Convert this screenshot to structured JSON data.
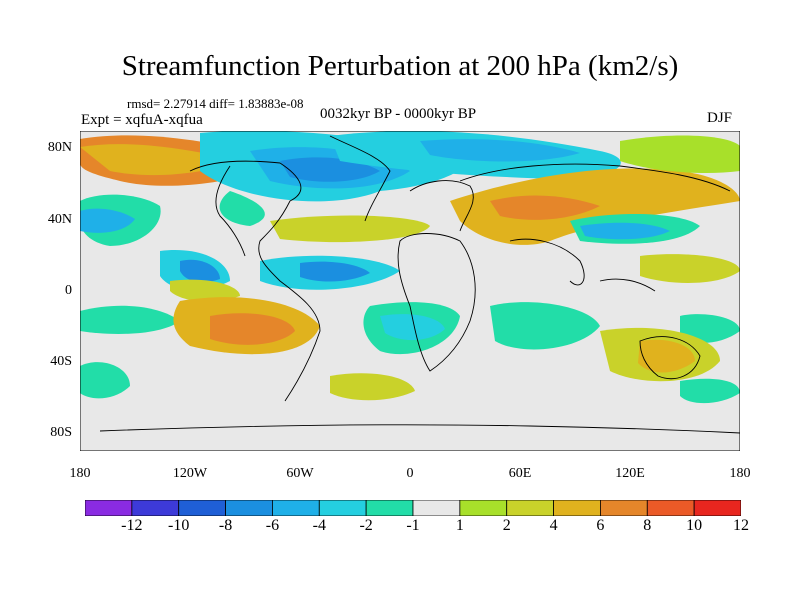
{
  "title": "Streamfunction Perturbation at 200 hPa (km2/s)",
  "stats": "rmsd= 2.27914 diff= 1.83883e-08",
  "experiment": "Expt = xqfuA-xqfua",
  "period": "0032kyr BP - 0000kyr BP",
  "season": "DJF",
  "lat_labels": [
    "80N",
    "40N",
    "0",
    "40S",
    "80S"
  ],
  "lon_labels": [
    "180",
    "120W",
    "60W",
    "0",
    "60E",
    "120E",
    "180"
  ],
  "colorbar": {
    "labels": [
      "-12",
      "-10",
      "-8",
      "-6",
      "-4",
      "-2",
      "-1",
      "1",
      "2",
      "4",
      "6",
      "8",
      "10",
      "12"
    ],
    "colors": [
      "#8a2be2",
      "#3d3ad9",
      "#1f5fd6",
      "#1b8fe0",
      "#1fb0e8",
      "#24cfe0",
      "#22dda8",
      "#e8e8e8",
      "#a8e02a",
      "#c9d22a",
      "#e0b21e",
      "#e5862a",
      "#eb5a27",
      "#e8261f"
    ]
  },
  "map": {
    "x_range": [
      -180,
      180
    ],
    "y_range": [
      -90,
      90
    ],
    "ocean_color": "#e8e8e8"
  }
}
